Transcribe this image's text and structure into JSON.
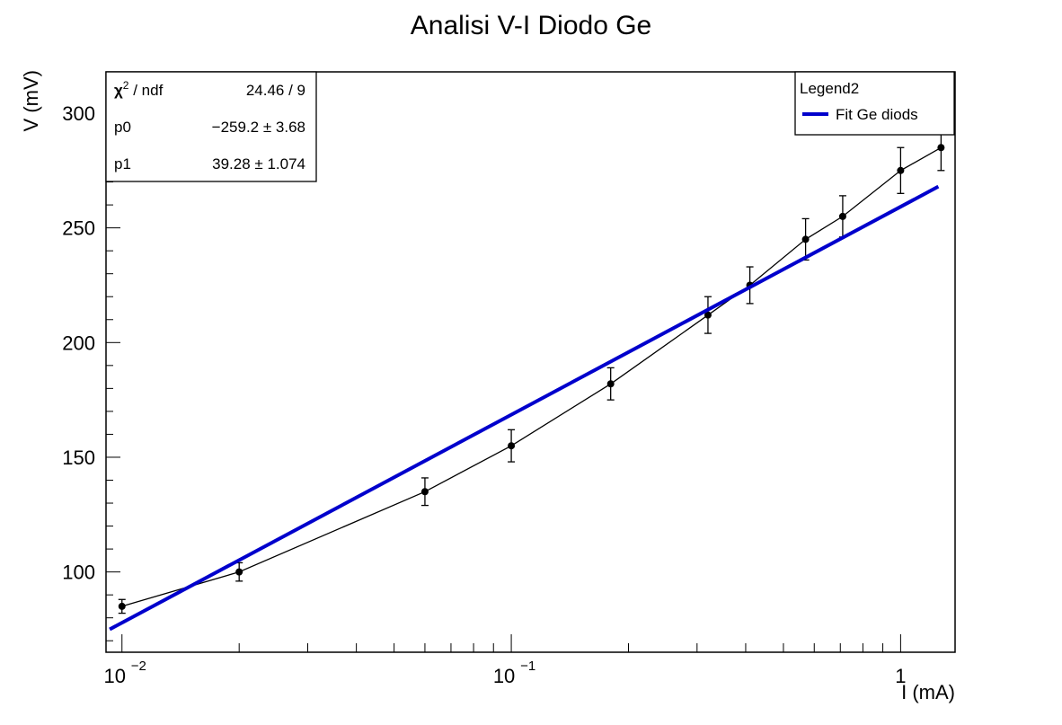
{
  "chart_data": {
    "type": "scatter",
    "title": "Analisi V-I Diodo Ge",
    "xlabel": "I (mA)",
    "ylabel": "V (mV)",
    "xscale": "log",
    "xlim": [
      0.0091,
      1.38
    ],
    "ylim": [
      65,
      318
    ],
    "x_tick_labels": [
      {
        "x": 0.01,
        "base": "10",
        "exp": "−2"
      },
      {
        "x": 0.1,
        "base": "10",
        "exp": "−1"
      },
      {
        "x": 1,
        "base": "1",
        "exp": ""
      }
    ],
    "y_ticks": [
      100,
      150,
      200,
      250,
      300
    ],
    "series": [
      {
        "type": "errorbar-line",
        "color": "#000000",
        "points": [
          {
            "x": 0.01,
            "y": 85,
            "err": 3
          },
          {
            "x": 0.02,
            "y": 100,
            "err": 4
          },
          {
            "x": 0.06,
            "y": 135,
            "err": 6
          },
          {
            "x": 0.1,
            "y": 155,
            "err": 7
          },
          {
            "x": 0.18,
            "y": 182,
            "err": 7
          },
          {
            "x": 0.32,
            "y": 212,
            "err": 8
          },
          {
            "x": 0.41,
            "y": 225,
            "err": 8
          },
          {
            "x": 0.57,
            "y": 245,
            "err": 9
          },
          {
            "x": 0.71,
            "y": 255,
            "err": 9
          },
          {
            "x": 1.0,
            "y": 275,
            "err": 10
          },
          {
            "x": 1.27,
            "y": 285,
            "err": 10
          }
        ]
      },
      {
        "type": "fit",
        "name": "Fit Ge diods",
        "color": "#0000cc",
        "line": [
          {
            "x": 0.0093,
            "y": 75
          },
          {
            "x": 1.25,
            "y": 268
          }
        ]
      }
    ],
    "stats_box": {
      "rows": [
        {
          "label_main": "χ",
          "label_sup": "2",
          "label_rest": " / ndf",
          "value": "24.46 / 9"
        },
        {
          "label_main": "p0",
          "label_sup": "",
          "label_rest": "",
          "value": "−259.2 ±  3.68"
        },
        {
          "label_main": "p1",
          "label_sup": "",
          "label_rest": "",
          "value": "39.28 ± 1.074"
        }
      ]
    },
    "legend": {
      "title": "Legend2",
      "position": "top-right",
      "entries": [
        {
          "label": "Fit Ge diods",
          "color": "#0000cc"
        }
      ]
    },
    "grid": false
  }
}
